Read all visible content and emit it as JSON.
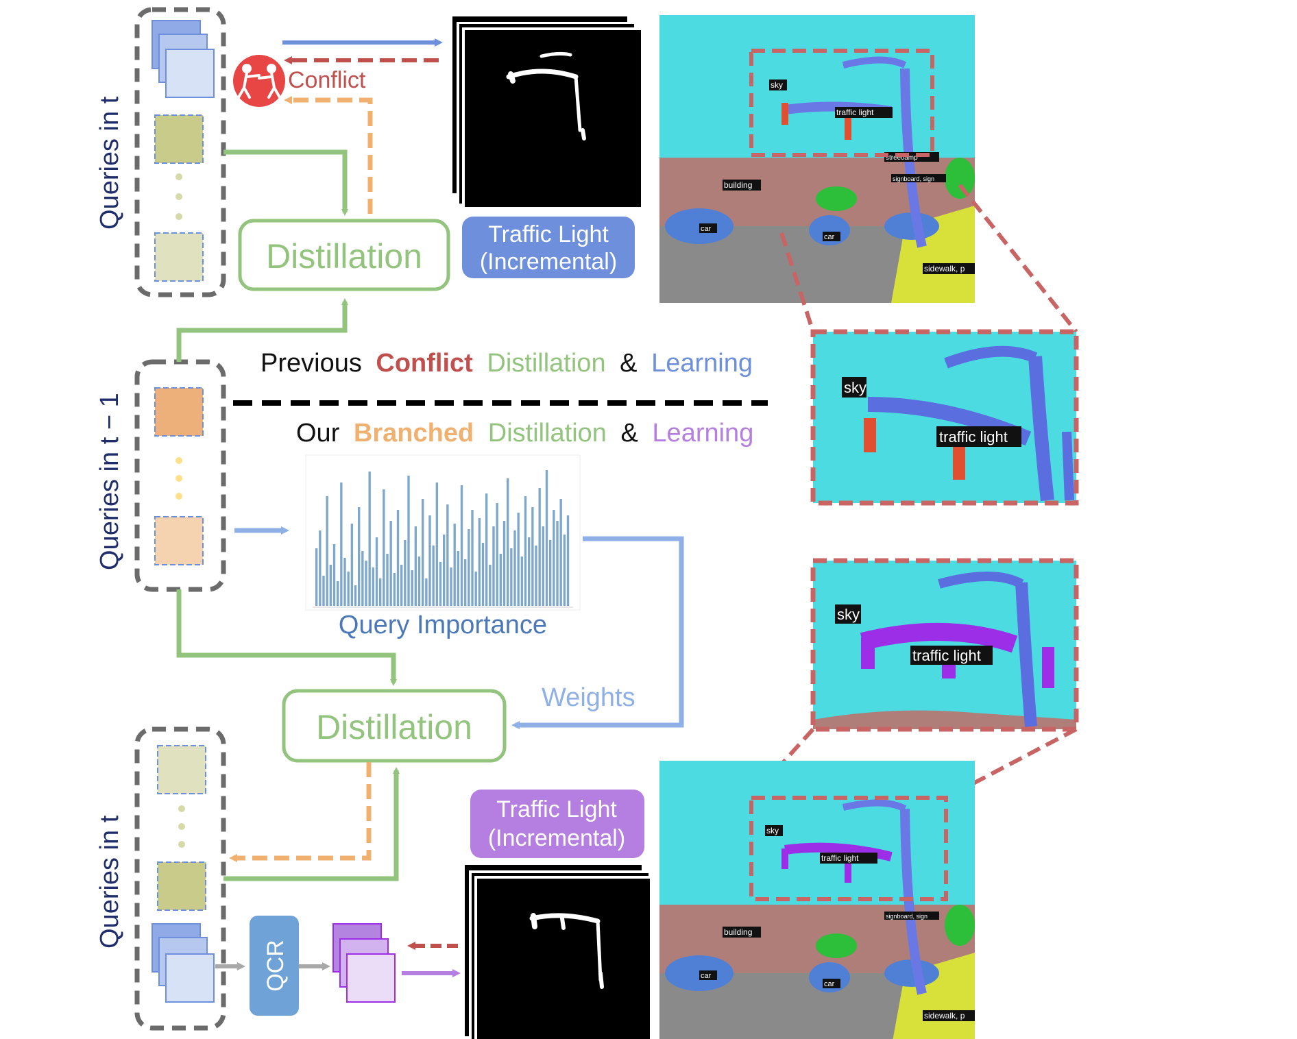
{
  "top": {
    "side_label": "Queries in t",
    "conflict_label": "Conflict",
    "distillation_label": "Distillation",
    "traffic_light_line1": "Traffic Light",
    "traffic_light_line2": "(Incremental)"
  },
  "middle": {
    "side_label": "Queries in t − 1",
    "previous_caption": {
      "word1": "Previous",
      "word2": "Conflict",
      "word3": "Distillation",
      "word4": "&",
      "word5": "Learning"
    },
    "ours_caption": {
      "word1": "Our",
      "word2": "Branched",
      "word3": "Distillation",
      "word4": "&",
      "word5": "Learning"
    },
    "chart_label": "Query Importance",
    "weights_label": "Weights"
  },
  "bottom": {
    "side_label": "Queries in t",
    "distillation_label": "Distillation",
    "traffic_light_line1": "Traffic Light",
    "traffic_light_line2": "(Incremental)",
    "qcr_label": "QCR"
  },
  "scene_labels": {
    "sky": "sky",
    "traffic_light": "traffic light",
    "building": "building",
    "car": "car",
    "sidewalk": "sidewalk, p",
    "streetlamp": "streetlamp",
    "signboard": "signboard, sign"
  },
  "chart_data": {
    "type": "bar",
    "title": "Query Importance",
    "values": [
      0.42,
      0.55,
      0.22,
      0.8,
      0.3,
      0.45,
      0.18,
      0.9,
      0.35,
      0.25,
      0.6,
      0.15,
      0.72,
      0.4,
      0.33,
      0.98,
      0.28,
      0.5,
      0.2,
      0.85,
      0.38,
      0.62,
      0.24,
      0.7,
      0.3,
      0.48,
      0.95,
      0.26,
      0.58,
      0.36,
      0.78,
      0.2,
      0.66,
      0.44,
      0.9,
      0.32,
      0.52,
      0.74,
      0.28,
      0.6,
      0.4,
      0.88,
      0.34,
      0.56,
      0.7,
      0.25,
      0.64,
      0.46,
      0.82,
      0.3,
      0.58,
      0.75,
      0.38,
      0.62,
      0.93,
      0.42,
      0.55,
      0.68,
      0.36,
      0.8,
      0.5,
      0.72,
      0.44,
      0.86,
      0.58,
      0.99,
      0.48,
      0.7,
      0.62,
      0.78,
      0.52,
      0.66
    ],
    "colors": {
      "bar": "#7ea7cc"
    }
  },
  "colors": {
    "green": "#93c47d",
    "blue": "#6d8fdc",
    "red": "#c0504d",
    "orange": "#f0b070",
    "purple": "#b47fe0",
    "dash_gray": "#6b6b6b",
    "navy": "#1f2e6b",
    "cyan": "#4cdbe0"
  }
}
